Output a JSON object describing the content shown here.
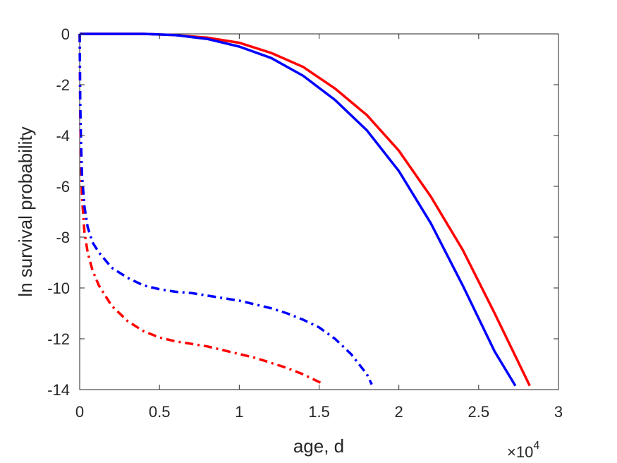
{
  "chart_data": {
    "type": "line",
    "title": "",
    "xlabel": "age, d",
    "ylabel": "ln survival probability",
    "x_exponent_label": {
      "base": "×10",
      "exp": "4"
    },
    "xlim": [
      0,
      30000
    ],
    "ylim": [
      -14,
      0
    ],
    "x_ticks": [
      0,
      5000,
      10000,
      15000,
      20000,
      25000,
      30000
    ],
    "x_tick_labels": [
      "0",
      "0.5",
      "1",
      "1.5",
      "2",
      "2.5",
      "3"
    ],
    "y_ticks": [
      0,
      -2,
      -4,
      -6,
      -8,
      -10,
      -12,
      -14
    ],
    "y_tick_labels": [
      "0",
      "-2",
      "-4",
      "-6",
      "-8",
      "-10",
      "-12",
      "-14"
    ],
    "grid": false,
    "legend": "none",
    "series": [
      {
        "color": "#ff0000",
        "style": "solid",
        "x": [
          0,
          2000,
          4000,
          6000,
          8000,
          10000,
          12000,
          14000,
          16000,
          18000,
          20000,
          22000,
          24000,
          26000,
          28200
        ],
        "y": [
          0,
          0,
          0,
          -0.05,
          -0.15,
          -0.35,
          -0.75,
          -1.3,
          -2.15,
          -3.2,
          -4.6,
          -6.4,
          -8.5,
          -11.0,
          -13.85
        ]
      },
      {
        "color": "#0000ff",
        "style": "solid",
        "x": [
          0,
          2000,
          4000,
          6000,
          8000,
          10000,
          12000,
          14000,
          16000,
          18000,
          20000,
          22000,
          24000,
          26000,
          27300
        ],
        "y": [
          0,
          0,
          0,
          -0.05,
          -0.2,
          -0.5,
          -0.95,
          -1.65,
          -2.6,
          -3.8,
          -5.4,
          -7.45,
          -9.9,
          -12.5,
          -13.85
        ]
      },
      {
        "color": "#ff0000",
        "style": "dashdot",
        "x": [
          0,
          30,
          80,
          150,
          300,
          500,
          800,
          1200,
          2000,
          3000,
          4000,
          5000,
          6000,
          7000,
          8000,
          9000,
          10000,
          11000,
          12000,
          13000,
          14000,
          15000,
          15300
        ],
        "y": [
          0,
          -3.0,
          -5.0,
          -6.5,
          -7.8,
          -8.6,
          -9.3,
          -9.9,
          -10.7,
          -11.3,
          -11.7,
          -11.95,
          -12.1,
          -12.2,
          -12.3,
          -12.45,
          -12.6,
          -12.75,
          -12.95,
          -13.15,
          -13.4,
          -13.7,
          -13.8
        ]
      },
      {
        "color": "#0000ff",
        "style": "dashdot",
        "x": [
          0,
          30,
          80,
          150,
          300,
          500,
          800,
          1200,
          2000,
          3000,
          4000,
          5000,
          6000,
          7000,
          8000,
          9000,
          10000,
          11000,
          12000,
          13000,
          14000,
          15000,
          16000,
          17000,
          18000,
          18300
        ],
        "y": [
          0,
          -2.5,
          -4.2,
          -5.6,
          -6.8,
          -7.6,
          -8.2,
          -8.6,
          -9.2,
          -9.6,
          -9.9,
          -10.05,
          -10.15,
          -10.2,
          -10.3,
          -10.4,
          -10.5,
          -10.65,
          -10.8,
          -11.0,
          -11.25,
          -11.55,
          -12.0,
          -12.6,
          -13.4,
          -13.8
        ]
      }
    ]
  }
}
